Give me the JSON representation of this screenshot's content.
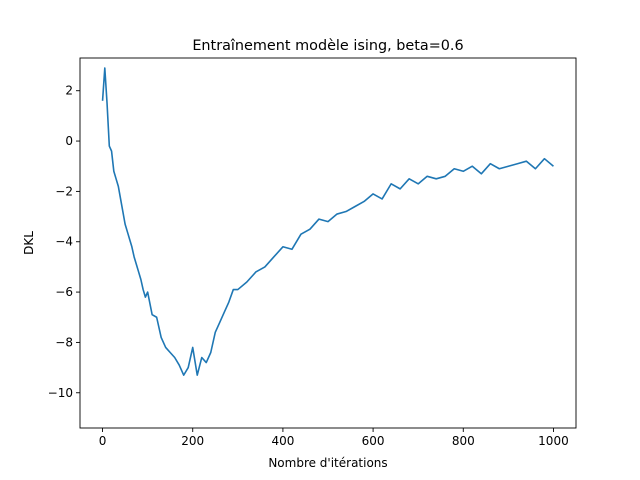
{
  "chart_data": {
    "type": "line",
    "title": "Entraînement modèle ising, beta=0.6",
    "xlabel": "Nombre d'itérations",
    "ylabel": "DKL",
    "xlim": [
      -50,
      1050
    ],
    "ylim": [
      -11.4,
      3.3
    ],
    "grid": false,
    "legend": "none",
    "x_ticks": [
      0,
      200,
      400,
      600,
      800,
      1000
    ],
    "y_ticks": [
      -10,
      -8,
      -6,
      -4,
      -2,
      0,
      2
    ],
    "series": [
      {
        "color": "#1f77b4",
        "x": [
          0,
          5,
          10,
          15,
          20,
          25,
          30,
          35,
          40,
          45,
          50,
          55,
          60,
          65,
          70,
          75,
          80,
          85,
          90,
          95,
          100,
          110,
          120,
          130,
          140,
          150,
          160,
          170,
          180,
          190,
          200,
          210,
          220,
          230,
          240,
          250,
          260,
          270,
          280,
          290,
          300,
          320,
          340,
          360,
          380,
          400,
          420,
          440,
          460,
          480,
          500,
          520,
          540,
          560,
          580,
          600,
          620,
          640,
          660,
          680,
          700,
          720,
          740,
          760,
          780,
          800,
          820,
          840,
          860,
          880,
          900,
          920,
          940,
          960,
          980,
          1000
        ],
        "y": [
          1.6,
          2.9,
          1.5,
          -0.2,
          -0.4,
          -1.2,
          -1.5,
          -1.8,
          -2.3,
          -2.8,
          -3.3,
          -3.6,
          -3.9,
          -4.2,
          -4.6,
          -4.9,
          -5.2,
          -5.5,
          -5.9,
          -6.2,
          -6.0,
          -6.9,
          -7.0,
          -7.8,
          -8.2,
          -8.4,
          -8.6,
          -8.9,
          -9.3,
          -9.0,
          -8.2,
          -9.3,
          -8.6,
          -8.8,
          -8.4,
          -7.6,
          -7.2,
          -6.8,
          -6.4,
          -5.9,
          -5.9,
          -5.6,
          -5.2,
          -5.0,
          -4.6,
          -4.2,
          -4.3,
          -3.7,
          -3.5,
          -3.1,
          -3.2,
          -2.9,
          -2.8,
          -2.6,
          -2.4,
          -2.1,
          -2.3,
          -1.7,
          -1.9,
          -1.5,
          -1.7,
          -1.4,
          -1.5,
          -1.4,
          -1.1,
          -1.2,
          -1.0,
          -1.3,
          -0.9,
          -1.1,
          -1.0,
          -0.9,
          -0.8,
          -1.1,
          -0.7,
          -1.0
        ]
      }
    ]
  }
}
